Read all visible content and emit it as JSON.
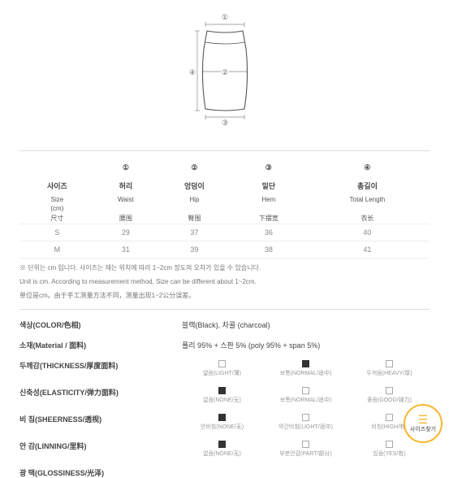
{
  "markers": {
    "m1": "①",
    "m2": "②",
    "m3": "③",
    "m4": "④"
  },
  "sizeTable": {
    "head": {
      "c0": "사이즈",
      "c1": "허리",
      "c2": "엉덩이",
      "c3": "밑단",
      "c4": "총길이"
    },
    "sub1": {
      "c0": "Size",
      "c1": "Waist",
      "c2": "Hip",
      "c3": "Hem",
      "c4": "Total Length"
    },
    "sub1b": {
      "c0": "(cm)"
    },
    "sub2": {
      "c0": "尺寸",
      "c1": "腰围",
      "c2": "臀围",
      "c3": "下摆宽",
      "c4": "衣长"
    },
    "rows": [
      {
        "c0": "S",
        "c1": "29",
        "c2": "37",
        "c3": "36",
        "c4": "40"
      },
      {
        "c0": "M",
        "c1": "31",
        "c2": "39",
        "c3": "38",
        "c4": "41"
      }
    ]
  },
  "notes": {
    "n1": "※ 단위는 cm 입니다. 사이즈는 재는 위치에 따라 1~2cm 정도의 오차가 있을 수 있습니다.",
    "n2": "Unit is cm. According to measurement method, Size can be different about 1~2cm.",
    "n3": "单位是cm。由于手工测量方法不同，测量出现1~2公分误差。"
  },
  "info": {
    "color": {
      "label": "색상(COLOR/色相)",
      "value": "블랙(Black), 차콜 (charcoal)"
    },
    "material": {
      "label": "소재(Material / 面料)",
      "value": "폴리 95% + 스판 5% (poly 95% + span 5%)"
    },
    "thickness": {
      "label": "두께감(THICKNESS/厚度面料)",
      "opts": [
        "얇음(LIGHT/薄)",
        "보통(NORMAL/适中)",
        "두꺼움(HEAVY/厚)"
      ],
      "sel": 1
    },
    "elasticity": {
      "label": "신축성(ELASTICITY/弹力面料)",
      "opts": [
        "없음(NONE/无)",
        "보통(NORMAL/适中)",
        "좋음(GOOD/弹力)"
      ],
      "sel": 0
    },
    "sheerness": {
      "label": "비 침(SHEERNESS/透视)",
      "opts": [
        "안비침(NONE/无)",
        "약간비침(LIGHT/适中)",
        "비침(HIGH/有)"
      ],
      "sel": 0
    },
    "lining": {
      "label": "안 감(LINNING/里料)",
      "opts": [
        "없음(NONE/无)",
        "부분안감(PART/部分)",
        "있음(YES/有)"
      ],
      "sel": 0
    },
    "glossiness": {
      "label": "광 택(GLOSSINESS/光泽)"
    }
  },
  "badge": {
    "text": "사이즈찾기"
  }
}
